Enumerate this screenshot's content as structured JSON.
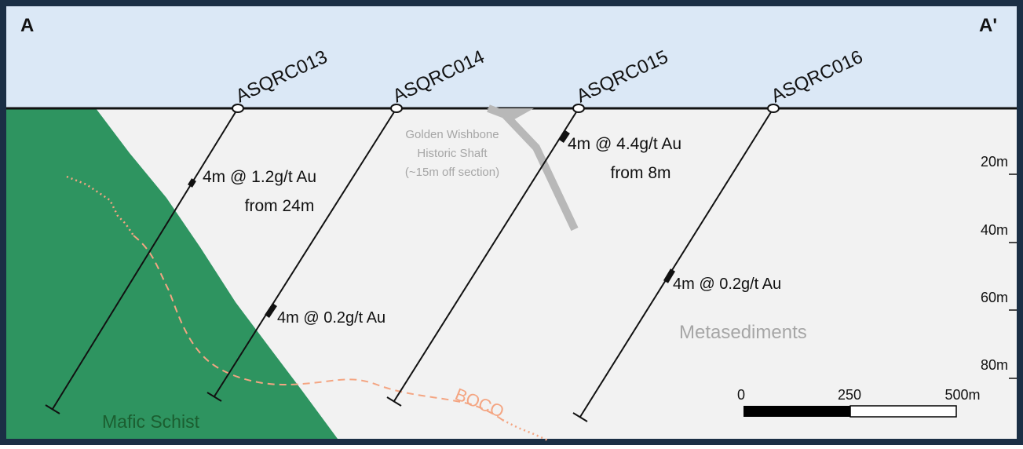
{
  "section_ends": {
    "left": "A",
    "right": "A'"
  },
  "drillholes": [
    {
      "id": "ASQRC013"
    },
    {
      "id": "ASQRC014"
    },
    {
      "id": "ASQRC015"
    },
    {
      "id": "ASQRC016"
    }
  ],
  "intercepts": [
    {
      "hole": "ASQRC013",
      "line1": "4m @ 1.2g/t Au",
      "line2": "from 24m"
    },
    {
      "hole": "ASQRC014",
      "line1": "4m @ 0.2g/t Au",
      "line2": ""
    },
    {
      "hole": "ASQRC015",
      "line1": "4m @ 4.4g/t Au",
      "line2": "from 8m"
    },
    {
      "hole": "ASQRC016",
      "line1": "4m @ 0.2g/t Au",
      "line2": ""
    }
  ],
  "shaft": {
    "line1": "Golden Wishbone",
    "line2": "Historic Shaft",
    "line3": "(~15m off section)"
  },
  "units": {
    "mafic": "Mafic Schist",
    "meta": "Metasediments",
    "contact": "BOCO"
  },
  "depth_ticks": [
    "20m",
    "40m",
    "60m",
    "80m"
  ],
  "scale_bar": {
    "labels": [
      "0",
      "250",
      "500m"
    ]
  },
  "colors": {
    "sky": "#dbe8f6",
    "ground": "#f2f2f2",
    "mafic": "#2e9460",
    "mafic_label": "#1b5e30",
    "boco": "#f4a582",
    "shaft": "#b8b8b8",
    "frame": "#1b2f45",
    "meta_label": "#a6a6a6"
  }
}
